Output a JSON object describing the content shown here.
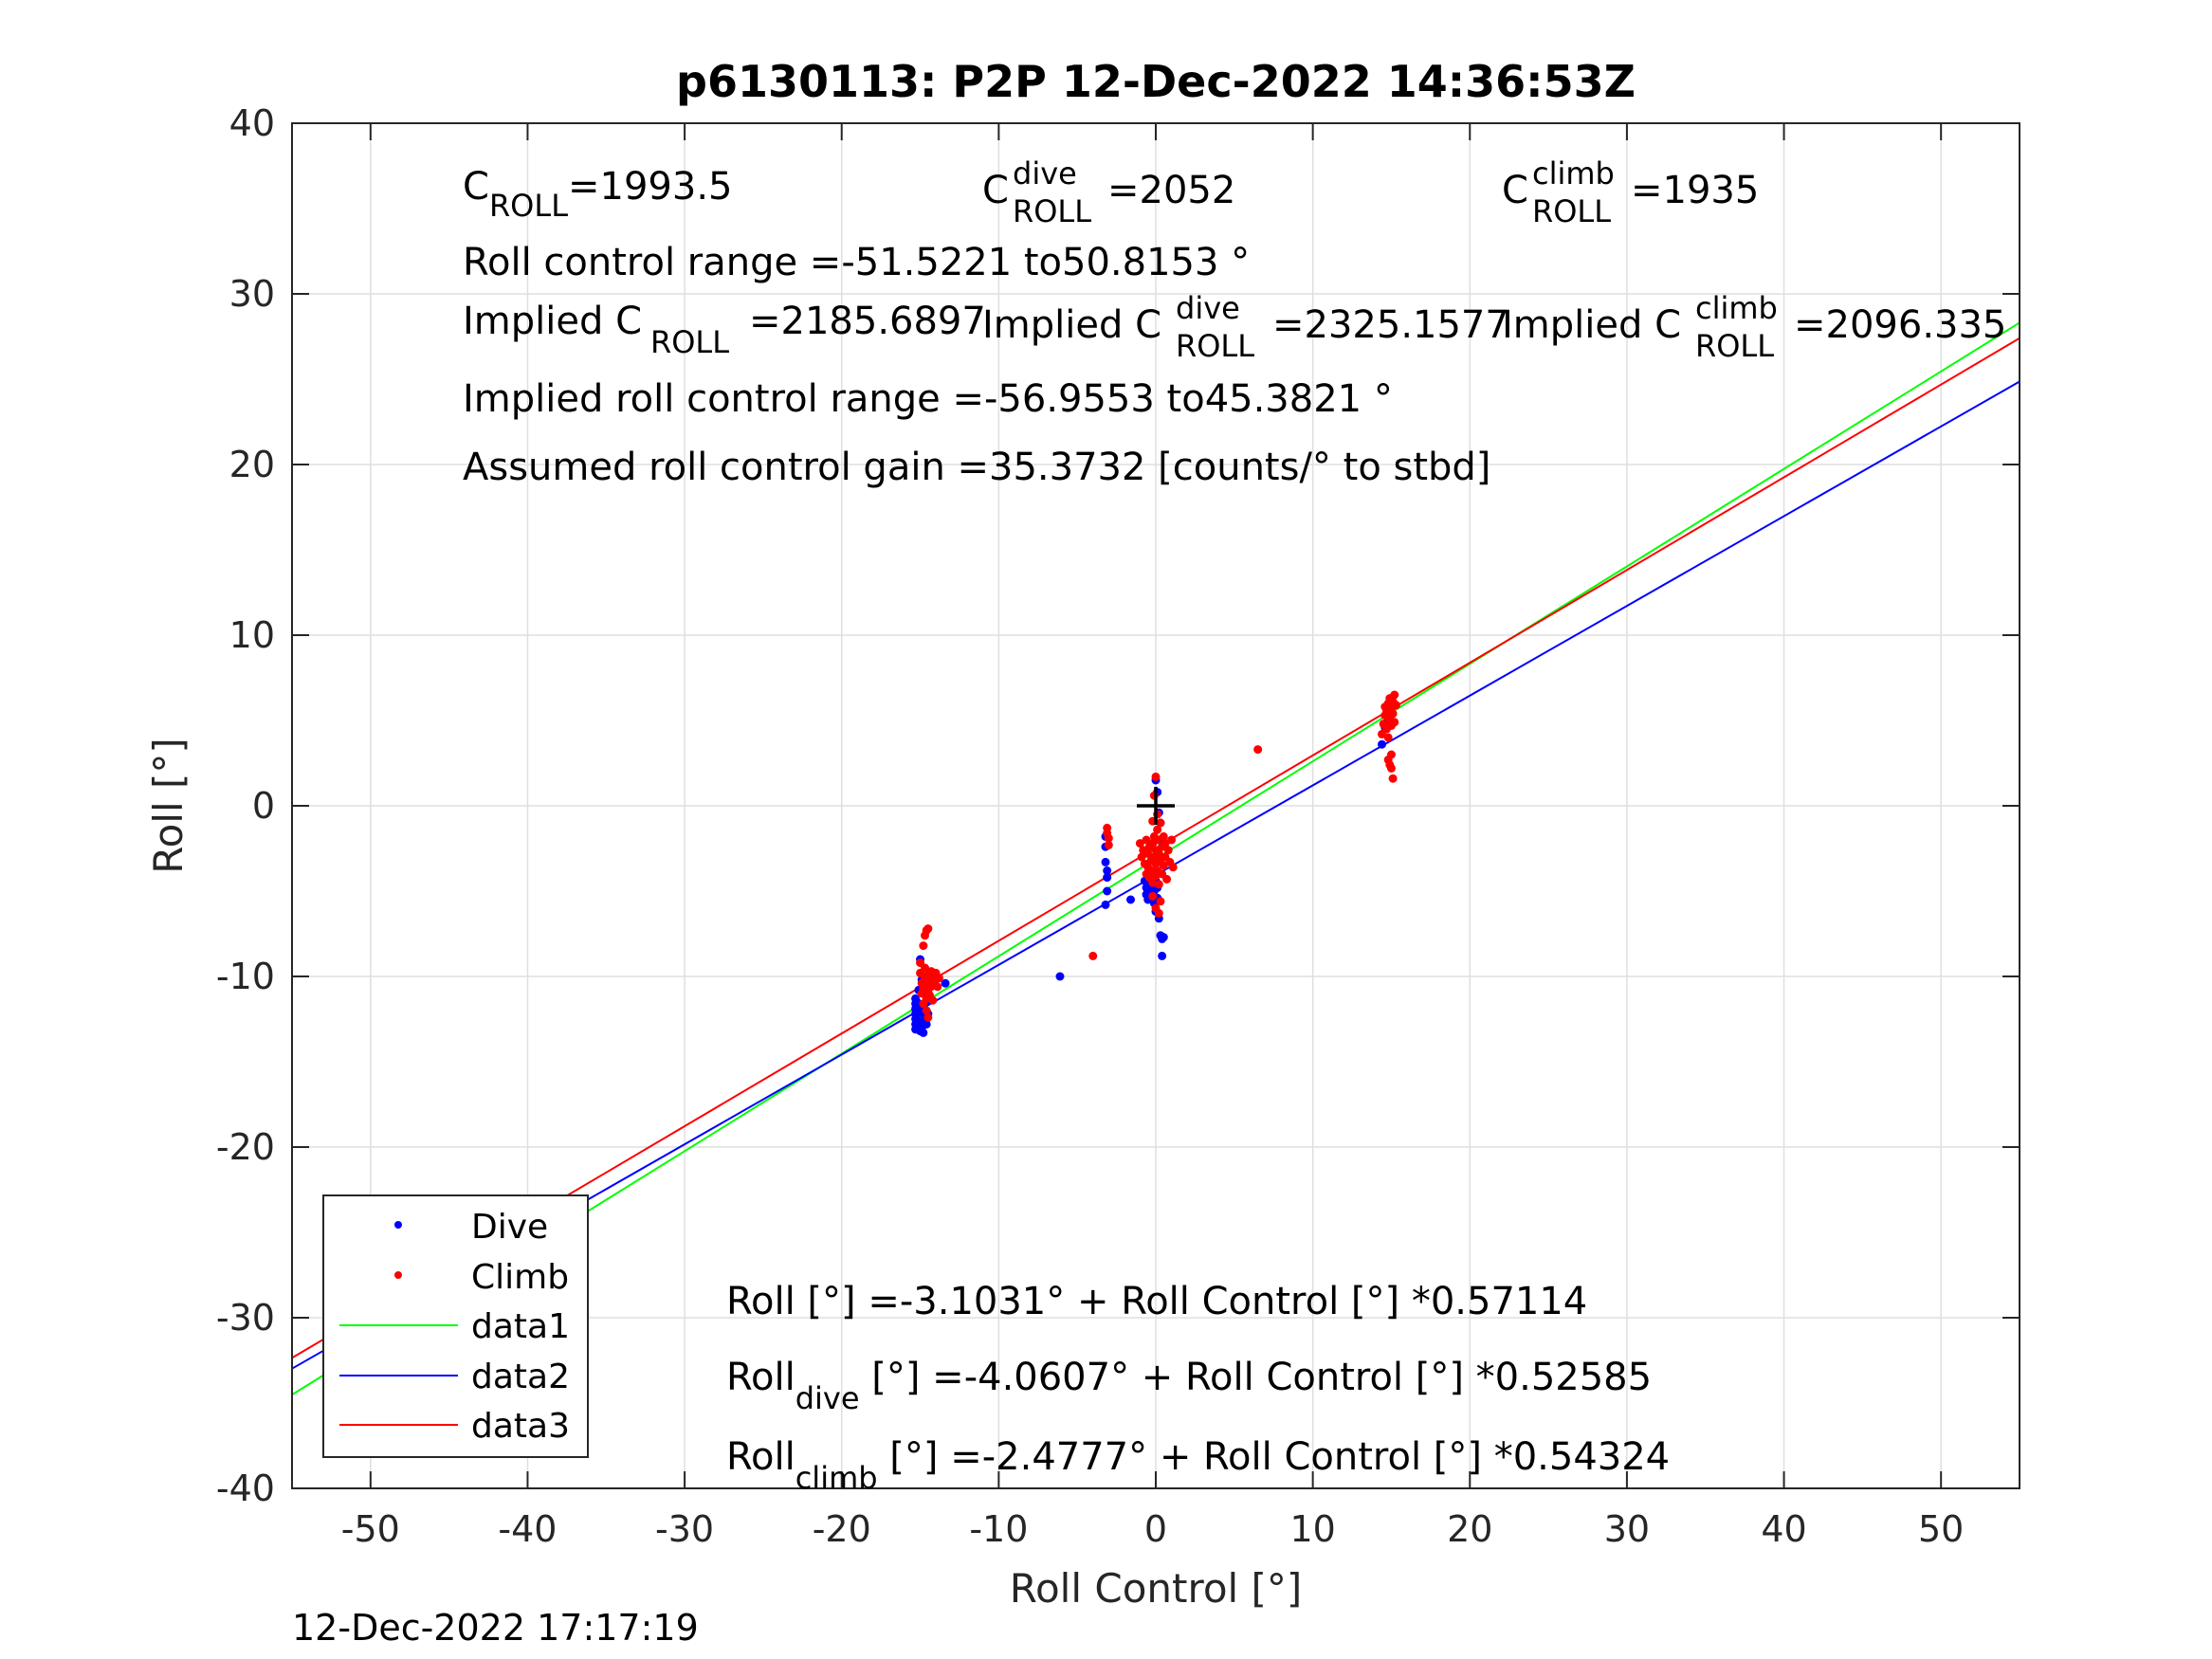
{
  "chart_data": {
    "type": "scatter",
    "title": "p6130113: P2P 12-Dec-2022 14:36:53Z",
    "xlabel": "Roll Control [°]",
    "ylabel": "Roll [°]",
    "xlim": [
      -55,
      55
    ],
    "ylim": [
      -40,
      40
    ],
    "xticks": [
      -50,
      -40,
      -30,
      -20,
      -10,
      0,
      10,
      20,
      30,
      40,
      50
    ],
    "yticks": [
      -40,
      -30,
      -20,
      -10,
      0,
      10,
      20,
      30,
      40
    ],
    "grid": true,
    "legend_position": "bottom-left",
    "series": [
      {
        "name": "Dive",
        "kind": "points",
        "color": "#0000ff",
        "points": [
          [
            -15.3,
            -11.3
          ],
          [
            -15.3,
            -11.6
          ],
          [
            -15.3,
            -11.9
          ],
          [
            -15.3,
            -12.2
          ],
          [
            -15.3,
            -12.5
          ],
          [
            -15.3,
            -12.8
          ],
          [
            -15.3,
            -13.1
          ],
          [
            -15.2,
            -11.5
          ],
          [
            -15.2,
            -12.0
          ],
          [
            -15.2,
            -12.4
          ],
          [
            -15.2,
            -12.9
          ],
          [
            -15.1,
            -11.8
          ],
          [
            -15.1,
            -12.6
          ],
          [
            -15.0,
            -12.1
          ],
          [
            -15.0,
            -12.7
          ],
          [
            -15.0,
            -13.2
          ],
          [
            -14.9,
            -12.3
          ],
          [
            -14.9,
            -13.0
          ],
          [
            -14.8,
            -11.7
          ],
          [
            -14.8,
            -12.5
          ],
          [
            -14.8,
            -13.3
          ],
          [
            -14.7,
            -12.0
          ],
          [
            -14.6,
            -12.8
          ],
          [
            -14.6,
            -11.4
          ],
          [
            -14.5,
            -12.2
          ],
          [
            -15.0,
            -9.0
          ],
          [
            -14.9,
            -10.2
          ],
          [
            -15.1,
            -10.8
          ],
          [
            -13.4,
            -10.4
          ],
          [
            -6.1,
            -10.0
          ],
          [
            -3.2,
            -1.8
          ],
          [
            -3.2,
            -2.4
          ],
          [
            -3.2,
            -3.3
          ],
          [
            -3.1,
            -3.8
          ],
          [
            -3.1,
            -4.2
          ],
          [
            -3.1,
            -5.0
          ],
          [
            -3.2,
            -5.8
          ],
          [
            -1.6,
            -5.5
          ],
          [
            -0.7,
            -4.4
          ],
          [
            -0.6,
            -4.8
          ],
          [
            -0.6,
            -5.2
          ],
          [
            -0.5,
            -4.6
          ],
          [
            -0.5,
            -5.0
          ],
          [
            -0.5,
            -5.5
          ],
          [
            -0.4,
            -4.3
          ],
          [
            -0.4,
            -4.9
          ],
          [
            -0.3,
            -5.3
          ],
          [
            -0.3,
            -4.7
          ],
          [
            -0.2,
            -5.1
          ],
          [
            -0.2,
            -4.5
          ],
          [
            -0.1,
            -5.0
          ],
          [
            -0.1,
            -5.7
          ],
          [
            0.0,
            -4.4
          ],
          [
            0.0,
            -6.2
          ],
          [
            0.1,
            -4.8
          ],
          [
            0.1,
            -5.4
          ],
          [
            0.2,
            -6.6
          ],
          [
            0.0,
            1.5
          ],
          [
            0.1,
            0.8
          ],
          [
            0.2,
            -0.4
          ],
          [
            0.3,
            -1.0
          ],
          [
            0.2,
            -2.0
          ],
          [
            0.3,
            -7.6
          ],
          [
            0.4,
            -7.8
          ],
          [
            0.5,
            -7.7
          ],
          [
            0.4,
            -8.8
          ],
          [
            14.4,
            3.6
          ],
          [
            14.6,
            4.6
          ],
          [
            14.8,
            5.0
          ]
        ]
      },
      {
        "name": "Climb",
        "kind": "points",
        "color": "#ff0000",
        "points": [
          [
            -15.0,
            -9.2
          ],
          [
            -15.0,
            -9.8
          ],
          [
            -14.9,
            -10.4
          ],
          [
            -14.9,
            -11.0
          ],
          [
            -14.8,
            -11.6
          ],
          [
            -14.8,
            -10.7
          ],
          [
            -14.7,
            -9.5
          ],
          [
            -14.7,
            -10.1
          ],
          [
            -14.6,
            -11.3
          ],
          [
            -14.6,
            -10.5
          ],
          [
            -14.5,
            -9.9
          ],
          [
            -14.5,
            -10.8
          ],
          [
            -14.4,
            -10.2
          ],
          [
            -14.4,
            -11.1
          ],
          [
            -14.3,
            -9.7
          ],
          [
            -14.3,
            -10.6
          ],
          [
            -14.2,
            -10.0
          ],
          [
            -14.2,
            -11.4
          ],
          [
            -14.1,
            -10.3
          ],
          [
            -14.0,
            -9.8
          ],
          [
            -13.9,
            -10.6
          ],
          [
            -13.8,
            -10.1
          ],
          [
            -14.7,
            -7.6
          ],
          [
            -14.6,
            -7.3
          ],
          [
            -14.5,
            -7.2
          ],
          [
            -14.8,
            -8.2
          ],
          [
            -14.6,
            -12.0
          ],
          [
            -14.5,
            -12.4
          ],
          [
            -3.1,
            -1.3
          ],
          [
            -3.1,
            -1.6
          ],
          [
            -3.0,
            -1.9
          ],
          [
            -3.0,
            -2.3
          ],
          [
            -4.0,
            -8.8
          ],
          [
            -1.0,
            -2.2
          ],
          [
            -0.9,
            -3.0
          ],
          [
            -0.8,
            -2.6
          ],
          [
            -0.7,
            -3.4
          ],
          [
            -0.6,
            -2.0
          ],
          [
            -0.6,
            -4.0
          ],
          [
            -0.5,
            -2.8
          ],
          [
            -0.5,
            -3.6
          ],
          [
            -0.4,
            -2.4
          ],
          [
            -0.4,
            -4.2
          ],
          [
            -0.3,
            -3.2
          ],
          [
            -0.3,
            -3.8
          ],
          [
            -0.2,
            -2.2
          ],
          [
            -0.2,
            -4.5
          ],
          [
            -0.1,
            -1.8
          ],
          [
            -0.1,
            -3.0
          ],
          [
            0.0,
            -2.6
          ],
          [
            0.0,
            -3.4
          ],
          [
            0.0,
            -4.1
          ],
          [
            0.1,
            -1.4
          ],
          [
            0.1,
            -2.0
          ],
          [
            0.1,
            -3.8
          ],
          [
            0.2,
            -2.8
          ],
          [
            0.2,
            -4.6
          ],
          [
            0.3,
            -1.0
          ],
          [
            0.3,
            -3.2
          ],
          [
            0.4,
            -2.4
          ],
          [
            0.4,
            -4.0
          ],
          [
            0.5,
            -1.8
          ],
          [
            0.5,
            -3.5
          ],
          [
            0.6,
            -2.2
          ],
          [
            0.6,
            -3.0
          ],
          [
            0.7,
            -4.3
          ],
          [
            0.8,
            -2.6
          ],
          [
            0.9,
            -3.3
          ],
          [
            1.0,
            -2.0
          ],
          [
            1.1,
            -3.6
          ],
          [
            0.0,
            1.7
          ],
          [
            -0.1,
            0.6
          ],
          [
            0.1,
            -0.5
          ],
          [
            -0.2,
            -0.9
          ],
          [
            0.0,
            -6.0
          ],
          [
            0.2,
            -6.3
          ],
          [
            0.3,
            -5.6
          ],
          [
            -0.2,
            -5.3
          ],
          [
            6.5,
            3.3
          ],
          [
            14.4,
            4.2
          ],
          [
            14.5,
            4.8
          ],
          [
            14.6,
            5.3
          ],
          [
            14.6,
            5.8
          ],
          [
            14.7,
            4.5
          ],
          [
            14.7,
            5.5
          ],
          [
            14.8,
            6.0
          ],
          [
            14.8,
            4.0
          ],
          [
            14.9,
            5.1
          ],
          [
            14.9,
            6.3
          ],
          [
            15.0,
            5.7
          ],
          [
            15.0,
            4.7
          ],
          [
            15.1,
            6.1
          ],
          [
            15.1,
            5.4
          ],
          [
            15.2,
            6.5
          ],
          [
            15.2,
            4.9
          ],
          [
            15.3,
            5.9
          ],
          [
            14.8,
            2.7
          ],
          [
            14.9,
            2.4
          ],
          [
            15.0,
            2.2
          ],
          [
            15.1,
            1.6
          ],
          [
            15.0,
            3.0
          ]
        ]
      },
      {
        "name": "data1",
        "kind": "line",
        "color": "#00ff00",
        "intercept": -3.1031,
        "slope": 0.57114
      },
      {
        "name": "data2",
        "kind": "line",
        "color": "#0000ff",
        "intercept": -4.0607,
        "slope": 0.52585
      },
      {
        "name": "data3",
        "kind": "line",
        "color": "#ff0000",
        "intercept": -2.4777,
        "slope": 0.54324
      }
    ],
    "marker": {
      "symbol": "+",
      "x": 0,
      "y": 0,
      "color": "#000000"
    },
    "annotations": {
      "c_roll": {
        "main": "C",
        "sub": "ROLL",
        "value": "=1993.5"
      },
      "c_roll_dive": {
        "main": "C",
        "sup": "dive",
        "sub": "ROLL",
        "value": "=2052"
      },
      "c_roll_climb": {
        "main": "C",
        "sup": "climb",
        "sub": "ROLL",
        "value": "=1935"
      },
      "control_range": "Roll control range =-51.5221 to50.8153 °",
      "implied_c_roll": {
        "main": "Implied C",
        "sub": "ROLL",
        "value": "=2185.6897"
      },
      "implied_c_roll_dive": {
        "main": "Implied C",
        "sup": "dive",
        "sub": "ROLL",
        "value": "=2325.1577"
      },
      "implied_c_roll_climb": {
        "main": "Implied C",
        "sup": "climb",
        "sub": "ROLL",
        "value": "=2096.335"
      },
      "implied_range": "Implied roll control range =-56.9553 to45.3821 °",
      "gain": "Assumed roll control gain =35.3732 [counts/° to stbd]",
      "fit_all": "Roll [°] =-3.1031° + Roll Control [°] *0.57114",
      "fit_dive": {
        "main": "Roll",
        "sub": "dive",
        "rest": " [°] =-4.0607° + Roll Control [°] *0.52585"
      },
      "fit_climb": {
        "main": "Roll",
        "sub": "climb",
        "rest": " [°] =-2.4777° + Roll Control [°] *0.54324"
      }
    }
  },
  "timestamp": "12-Dec-2022 17:17:19"
}
